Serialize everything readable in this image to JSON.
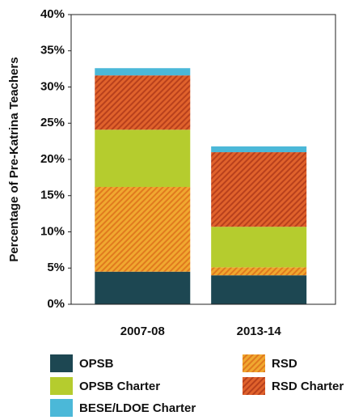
{
  "chart_data": {
    "type": "stacked_bar",
    "y_label": "Percentage of Pre-Katrina Teachers",
    "categories": [
      "2007-08",
      "2013-14"
    ],
    "series": [
      {
        "name": "OPSB",
        "color": "#1d4752",
        "values": [
          4.5,
          4.0
        ]
      },
      {
        "name": "RSD",
        "color": "#f0a830",
        "hatch": "#e07a1e",
        "values": [
          11.7,
          1.1
        ]
      },
      {
        "name": "OPSB Charter",
        "color": "#b5cc2e",
        "values": [
          7.9,
          5.6
        ]
      },
      {
        "name": "RSD Charter",
        "color": "#e0622c",
        "hatch": "#b8401c",
        "values": [
          7.5,
          10.3
        ]
      },
      {
        "name": "BESE/LDOE Charter",
        "color": "#4bb8d8",
        "values": [
          1.0,
          0.8
        ]
      }
    ],
    "ylim": [
      0,
      40
    ],
    "yticks": [
      {
        "value": 0,
        "label": "0%"
      },
      {
        "value": 5,
        "label": "5%"
      },
      {
        "value": 10,
        "label": "10%"
      },
      {
        "value": 15,
        "label": "15%"
      },
      {
        "value": 20,
        "label": "20%"
      },
      {
        "value": 25,
        "label": "25%"
      },
      {
        "value": 30,
        "label": "30%"
      },
      {
        "value": 35,
        "label": "35%"
      },
      {
        "value": 40,
        "label": "40%"
      }
    ],
    "grid": false
  }
}
